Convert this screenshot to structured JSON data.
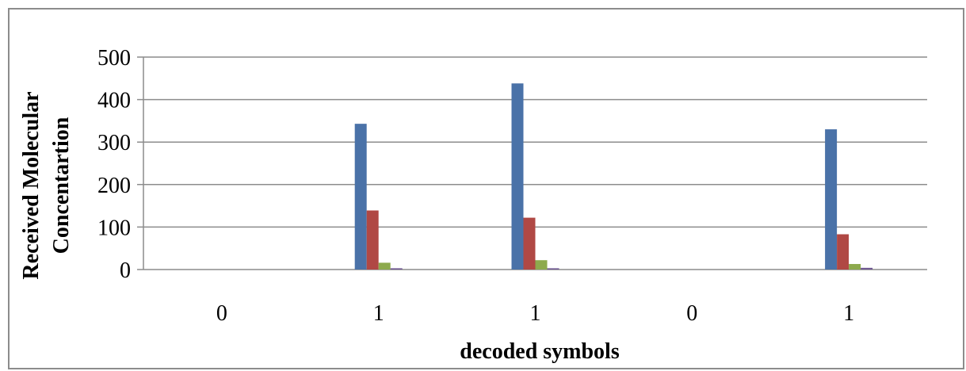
{
  "chart_data": {
    "type": "bar",
    "title": "",
    "xlabel": "decoded symbols",
    "ylabel_lines": [
      "Received Molecular",
      "Concentartion"
    ],
    "categories": [
      "0",
      "1",
      "1",
      "0",
      "1"
    ],
    "ylim": [
      0,
      500
    ],
    "yticks": [
      0,
      100,
      200,
      300,
      400,
      500
    ],
    "grid": true,
    "legend": "none",
    "series": [
      {
        "color": "#4a72a8",
        "values": [
          0,
          343,
          438,
          0,
          330
        ]
      },
      {
        "color": "#b04844",
        "values": [
          0,
          139,
          122,
          0,
          83
        ]
      },
      {
        "color": "#8daa4d",
        "values": [
          0,
          16,
          22,
          0,
          13
        ]
      },
      {
        "color": "#705992",
        "values": [
          0,
          3,
          3,
          0,
          4
        ]
      }
    ]
  }
}
